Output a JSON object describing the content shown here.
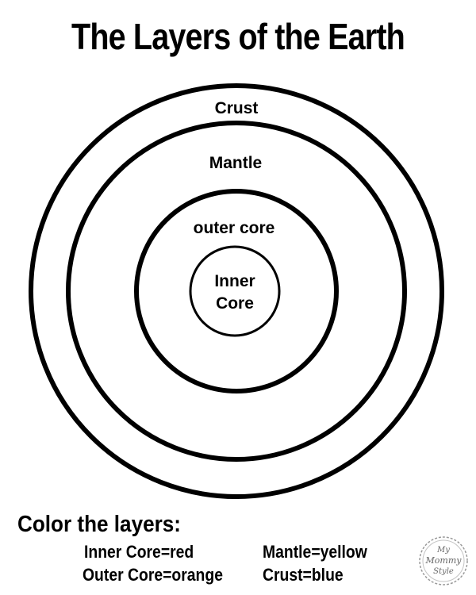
{
  "title": "The Layers of the Earth",
  "layers": {
    "crust": "Crust",
    "mantle": "Mantle",
    "outer_core": "outer core",
    "inner_core_line1": "Inner",
    "inner_core_line2": "Core"
  },
  "instructions": {
    "heading": "Color the layers:",
    "items": [
      "Inner Core=red",
      "Mantle=yellow",
      "Outer Core=orange",
      "Crust=blue"
    ]
  },
  "watermark": {
    "line1": "My",
    "line2": "Mommy",
    "line3": "Style"
  }
}
